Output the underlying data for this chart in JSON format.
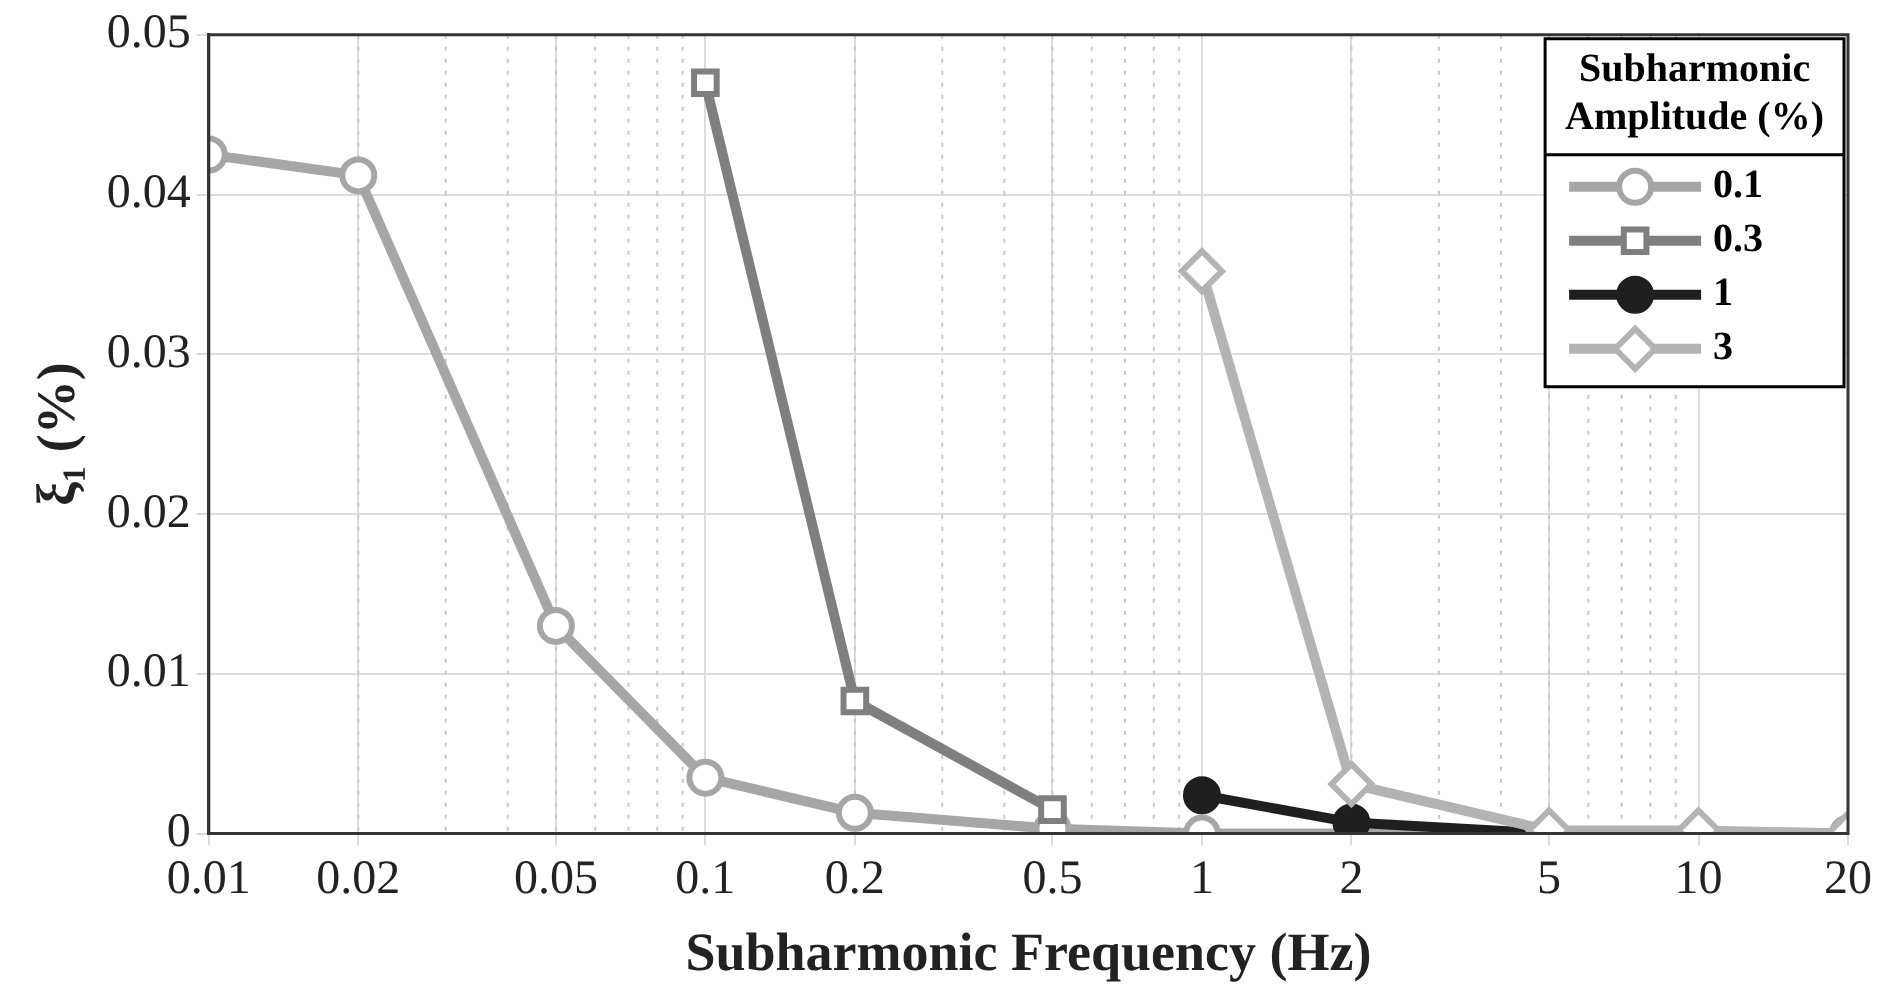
{
  "chart_data": {
    "type": "line",
    "xlabel": "Subharmonic Frequency (Hz)",
    "ylabel": "ξ₁ (%)",
    "legend_title": "Subharmonic Amplitude (%)",
    "log": "x",
    "grid": true,
    "legend": "top right",
    "line_style": "solid",
    "xlim": [
      0.01,
      20
    ],
    "xticks": [
      0.01,
      0.02,
      0.05,
      0.1,
      0.2,
      0.5,
      1,
      2,
      5,
      10,
      20
    ],
    "ylim": [
      0,
      0.05
    ],
    "yticks": [
      0,
      0.01,
      0.02,
      0.03,
      0.04,
      0.05
    ],
    "series": [
      {
        "name": "0.1",
        "color": "#a6a6a6",
        "marker": "circle",
        "x": [
          0.01,
          0.02,
          0.05,
          0.1,
          0.2,
          0.5,
          1,
          2,
          5,
          10,
          20
        ],
        "values": [
          0.0425,
          0.0412,
          0.013,
          0.0035,
          0.0013,
          0.0003,
          0,
          0,
          0,
          0,
          0
        ]
      },
      {
        "name": "0.3",
        "color": "#7f7f7f",
        "marker": "square",
        "x": [
          0.1,
          0.2,
          0.5
        ],
        "values": [
          0.047,
          0.0083,
          0.0015
        ]
      },
      {
        "name": "1",
        "color": "#1f1f1f",
        "marker": "circle",
        "x": [
          1,
          2,
          5
        ],
        "values": [
          0.0024,
          0.0007,
          0
        ]
      },
      {
        "name": "3",
        "color": "#b3b3b3",
        "marker": "diamond",
        "x": [
          1,
          2,
          5,
          10,
          20
        ],
        "values": [
          0.0352,
          0.0031,
          0.0002,
          0.0002,
          0
        ]
      }
    ]
  }
}
